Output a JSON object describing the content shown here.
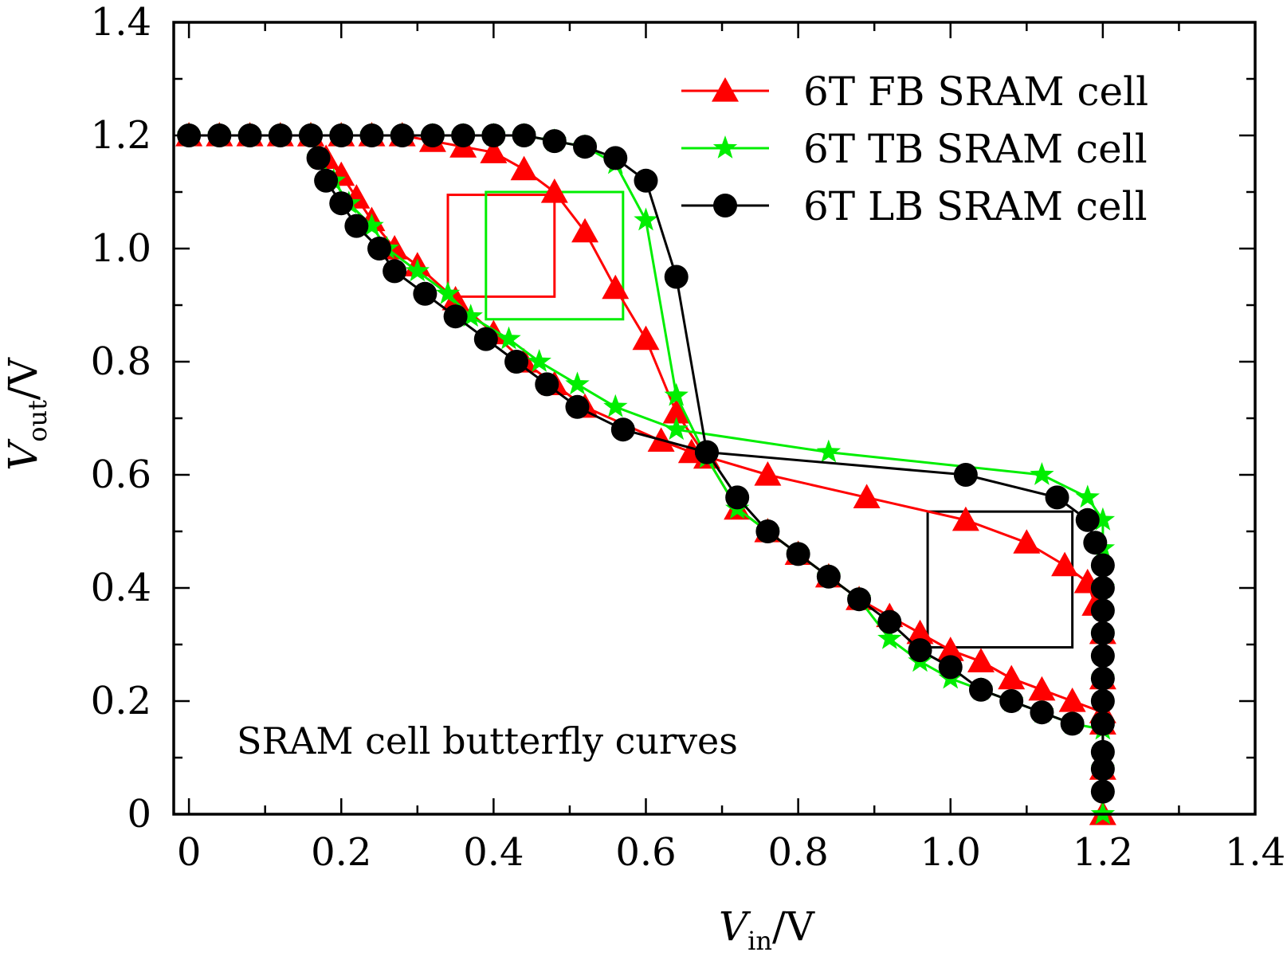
{
  "chart_data": {
    "type": "line",
    "title": "",
    "annotation": "SRAM cell butterfly curves",
    "xlabel": {
      "main": "V",
      "sub": "in",
      "unit": "/V"
    },
    "ylabel": {
      "main": "V",
      "sub": "out",
      "unit": "/V"
    },
    "xlim": [
      -0.02,
      1.4
    ],
    "ylim": [
      0,
      1.4
    ],
    "x_ticks": [
      {
        "value": 0,
        "label": "0"
      },
      {
        "value": 0.2,
        "label": "0.2"
      },
      {
        "value": 0.4,
        "label": "0.4"
      },
      {
        "value": 0.6,
        "label": "0.6"
      },
      {
        "value": 0.8,
        "label": "0.8"
      },
      {
        "value": 1.0,
        "label": "1.0"
      },
      {
        "value": 1.2,
        "label": "1.2"
      },
      {
        "value": 1.4,
        "label": "1.4"
      }
    ],
    "y_ticks": [
      {
        "value": 0,
        "label": "0"
      },
      {
        "value": 0.2,
        "label": "0.2"
      },
      {
        "value": 0.4,
        "label": "0.4"
      },
      {
        "value": 0.6,
        "label": "0.6"
      },
      {
        "value": 0.8,
        "label": "0.8"
      },
      {
        "value": 1.0,
        "label": "1.0"
      },
      {
        "value": 1.2,
        "label": "1.2"
      },
      {
        "value": 1.4,
        "label": "1.4"
      }
    ],
    "x_minor_step": 0.1,
    "y_minor_step": 0.1,
    "legend_position": "top-right",
    "series": [
      {
        "name": "6T FB SRAM cell",
        "color": "#ff0000",
        "marker": "triangle",
        "curves": [
          [
            [
              0,
              1.2
            ],
            [
              0.04,
              1.2
            ],
            [
              0.08,
              1.2
            ],
            [
              0.12,
              1.2
            ],
            [
              0.16,
              1.2
            ],
            [
              0.2,
              1.2
            ],
            [
              0.24,
              1.2
            ],
            [
              0.28,
              1.2
            ],
            [
              0.32,
              1.19
            ],
            [
              0.36,
              1.18
            ],
            [
              0.4,
              1.17
            ],
            [
              0.44,
              1.14
            ],
            [
              0.48,
              1.1
            ],
            [
              0.52,
              1.03
            ],
            [
              0.56,
              0.93
            ],
            [
              0.6,
              0.84
            ],
            [
              0.64,
              0.71
            ],
            [
              0.68,
              0.63
            ],
            [
              0.72,
              0.54
            ],
            [
              0.76,
              0.5
            ],
            [
              0.8,
              0.46
            ],
            [
              0.84,
              0.42
            ],
            [
              0.88,
              0.38
            ],
            [
              0.92,
              0.35
            ],
            [
              0.96,
              0.32
            ],
            [
              1.0,
              0.29
            ],
            [
              1.04,
              0.27
            ],
            [
              1.08,
              0.24
            ],
            [
              1.12,
              0.22
            ],
            [
              1.16,
              0.2
            ],
            [
              1.2,
              0.18
            ]
          ],
          [
            [
              1.2,
              0.0
            ],
            [
              1.2,
              0.08
            ],
            [
              1.2,
              0.16
            ],
            [
              1.2,
              0.24
            ],
            [
              1.2,
              0.32
            ],
            [
              1.19,
              0.37
            ],
            [
              1.18,
              0.41
            ],
            [
              1.15,
              0.44
            ],
            [
              1.1,
              0.48
            ],
            [
              1.02,
              0.52
            ],
            [
              0.89,
              0.56
            ],
            [
              0.76,
              0.6
            ],
            [
              0.66,
              0.64
            ],
            [
              0.62,
              0.66
            ],
            [
              0.52,
              0.72
            ],
            [
              0.48,
              0.76
            ],
            [
              0.44,
              0.8
            ],
            [
              0.4,
              0.85
            ],
            [
              0.35,
              0.91
            ],
            [
              0.3,
              0.97
            ],
            [
              0.27,
              1.0
            ],
            [
              0.24,
              1.05
            ],
            [
              0.22,
              1.09
            ],
            [
              0.2,
              1.13
            ],
            [
              0.18,
              1.16
            ],
            [
              0.16,
              1.2
            ]
          ]
        ]
      },
      {
        "name": "6T TB SRAM cell",
        "color": "#00ee00",
        "marker": "star",
        "curves": [
          [
            [
              0,
              1.2
            ],
            [
              0.04,
              1.2
            ],
            [
              0.08,
              1.2
            ],
            [
              0.12,
              1.2
            ],
            [
              0.16,
              1.2
            ],
            [
              0.2,
              1.2
            ],
            [
              0.24,
              1.2
            ],
            [
              0.28,
              1.2
            ],
            [
              0.32,
              1.2
            ],
            [
              0.36,
              1.2
            ],
            [
              0.4,
              1.2
            ],
            [
              0.44,
              1.2
            ],
            [
              0.48,
              1.19
            ],
            [
              0.52,
              1.18
            ],
            [
              0.56,
              1.15
            ],
            [
              0.6,
              1.05
            ],
            [
              0.64,
              0.74
            ],
            [
              0.68,
              0.63
            ],
            [
              0.72,
              0.54
            ],
            [
              0.76,
              0.5
            ],
            [
              0.8,
              0.46
            ],
            [
              0.84,
              0.42
            ],
            [
              0.88,
              0.38
            ],
            [
              0.92,
              0.31
            ],
            [
              0.96,
              0.27
            ],
            [
              1.0,
              0.24
            ],
            [
              1.04,
              0.22
            ],
            [
              1.08,
              0.2
            ],
            [
              1.12,
              0.18
            ],
            [
              1.16,
              0.16
            ],
            [
              1.2,
              0.15
            ]
          ],
          [
            [
              1.2,
              0.0
            ],
            [
              1.2,
              0.08
            ],
            [
              1.2,
              0.16
            ],
            [
              1.2,
              0.24
            ],
            [
              1.2,
              0.32
            ],
            [
              1.2,
              0.4
            ],
            [
              1.2,
              0.47
            ],
            [
              1.2,
              0.52
            ],
            [
              1.18,
              0.56
            ],
            [
              1.12,
              0.6
            ],
            [
              0.84,
              0.64
            ],
            [
              0.64,
              0.68
            ],
            [
              0.56,
              0.72
            ],
            [
              0.51,
              0.76
            ],
            [
              0.46,
              0.8
            ],
            [
              0.42,
              0.84
            ],
            [
              0.37,
              0.88
            ],
            [
              0.34,
              0.92
            ],
            [
              0.3,
              0.96
            ],
            [
              0.26,
              1.0
            ],
            [
              0.24,
              1.04
            ],
            [
              0.21,
              1.08
            ],
            [
              0.19,
              1.12
            ],
            [
              0.17,
              1.16
            ],
            [
              0.16,
              1.2
            ]
          ]
        ]
      },
      {
        "name": "6T LB SRAM cell",
        "color": "#000000",
        "marker": "circle",
        "curves": [
          [
            [
              0,
              1.2
            ],
            [
              0.04,
              1.2
            ],
            [
              0.08,
              1.2
            ],
            [
              0.12,
              1.2
            ],
            [
              0.16,
              1.2
            ],
            [
              0.2,
              1.2
            ],
            [
              0.24,
              1.2
            ],
            [
              0.28,
              1.2
            ],
            [
              0.32,
              1.2
            ],
            [
              0.36,
              1.2
            ],
            [
              0.4,
              1.2
            ],
            [
              0.44,
              1.2
            ],
            [
              0.48,
              1.19
            ],
            [
              0.52,
              1.18
            ],
            [
              0.56,
              1.16
            ],
            [
              0.6,
              1.12
            ],
            [
              0.64,
              0.95
            ],
            [
              0.68,
              0.64
            ],
            [
              0.72,
              0.56
            ],
            [
              0.76,
              0.5
            ],
            [
              0.8,
              0.46
            ],
            [
              0.84,
              0.42
            ],
            [
              0.88,
              0.38
            ],
            [
              0.92,
              0.34
            ],
            [
              0.96,
              0.29
            ],
            [
              1.0,
              0.26
            ],
            [
              1.04,
              0.22
            ],
            [
              1.08,
              0.2
            ],
            [
              1.12,
              0.18
            ],
            [
              1.16,
              0.16
            ]
          ],
          [
            [
              1.2,
              0.04
            ],
            [
              1.2,
              0.08
            ],
            [
              1.2,
              0.11
            ],
            [
              1.2,
              0.16
            ],
            [
              1.2,
              0.2
            ],
            [
              1.2,
              0.24
            ],
            [
              1.2,
              0.28
            ],
            [
              1.2,
              0.32
            ],
            [
              1.2,
              0.36
            ],
            [
              1.2,
              0.4
            ],
            [
              1.2,
              0.44
            ],
            [
              1.19,
              0.48
            ],
            [
              1.18,
              0.52
            ],
            [
              1.14,
              0.56
            ],
            [
              1.02,
              0.6
            ],
            [
              0.68,
              0.64
            ],
            [
              0.57,
              0.68
            ],
            [
              0.51,
              0.72
            ],
            [
              0.47,
              0.76
            ],
            [
              0.43,
              0.8
            ],
            [
              0.39,
              0.84
            ],
            [
              0.35,
              0.88
            ],
            [
              0.31,
              0.92
            ],
            [
              0.27,
              0.96
            ],
            [
              0.25,
              1.0
            ],
            [
              0.22,
              1.04
            ],
            [
              0.2,
              1.08
            ],
            [
              0.18,
              1.12
            ],
            [
              0.17,
              1.16
            ],
            [
              0.16,
              1.2
            ]
          ]
        ]
      }
    ],
    "noise_margin_boxes": [
      {
        "series": "6T FB SRAM cell",
        "color": "#ff0000",
        "x": [
          0.34,
          0.48
        ],
        "y": [
          0.915,
          1.095
        ]
      },
      {
        "series": "6T TB SRAM cell",
        "color": "#00ee00",
        "x": [
          0.39,
          0.57
        ],
        "y": [
          0.875,
          1.1
        ]
      },
      {
        "series": "6T LB SRAM cell",
        "color": "#000000",
        "x": [
          0.97,
          1.16
        ],
        "y": [
          0.295,
          0.535
        ]
      }
    ]
  }
}
